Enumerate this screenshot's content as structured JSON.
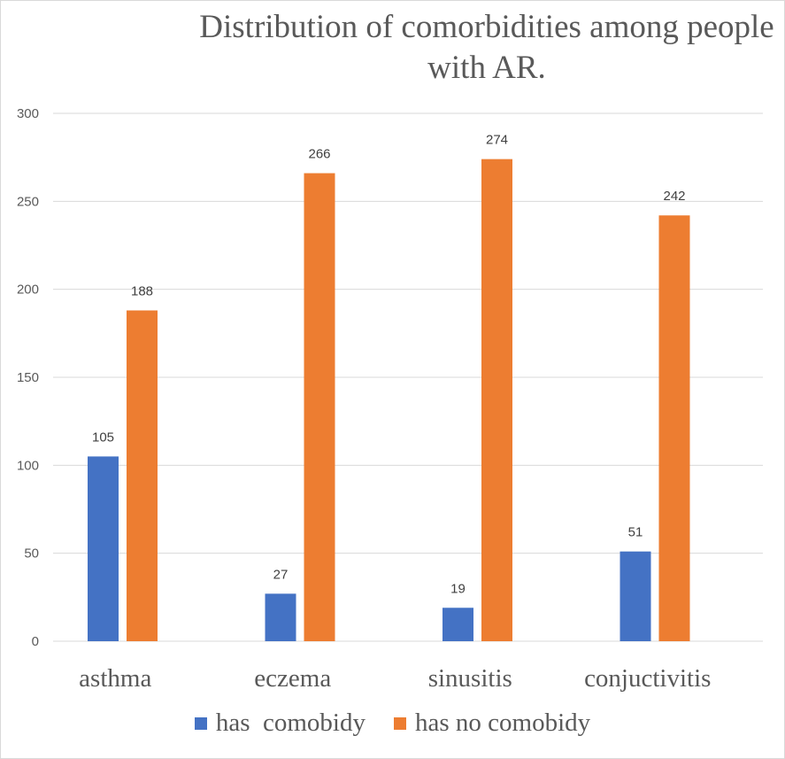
{
  "chart_data": {
    "type": "bar",
    "title": "Distribution of comorbidities among people with AR.",
    "categories": [
      "asthma",
      "eczema",
      "sinusitis",
      "conjuctivitis"
    ],
    "series": [
      {
        "name": "has  comobidy",
        "color": "#4472C4",
        "values": [
          105,
          27,
          19,
          51
        ]
      },
      {
        "name": "has no comobidy",
        "color": "#ED7D31",
        "values": [
          188,
          266,
          274,
          242
        ]
      }
    ],
    "yticks": [
      "0",
      "50",
      "100",
      "150",
      "200",
      "250",
      "300"
    ],
    "ylim": [
      0,
      300
    ],
    "grid": true,
    "legend_position": "bottom",
    "data_labels": true
  }
}
